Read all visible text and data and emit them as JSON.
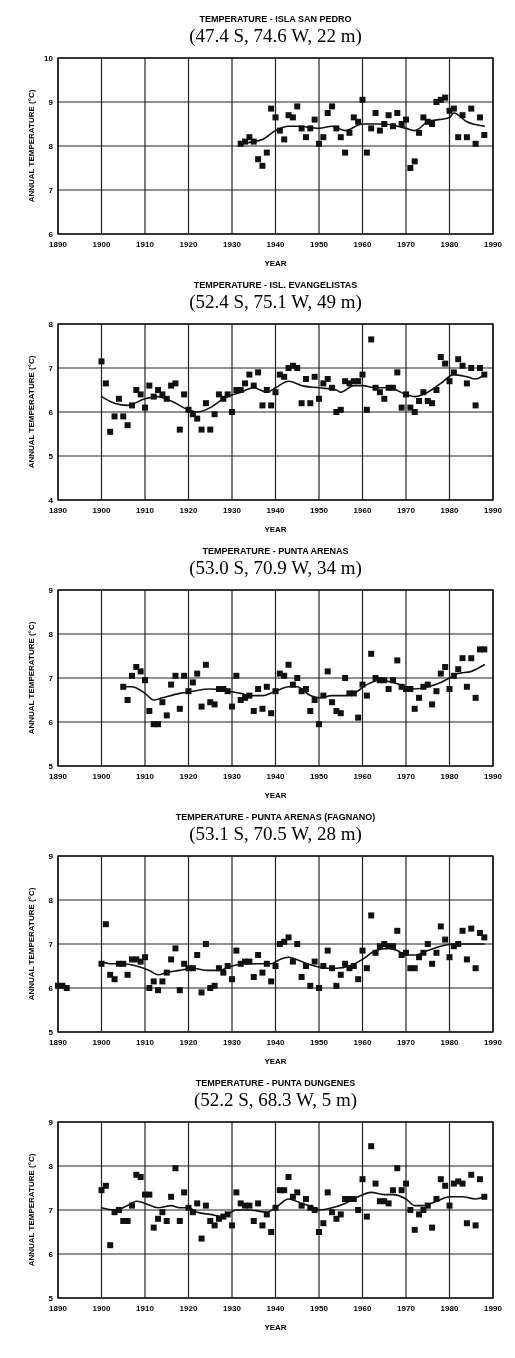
{
  "chart_data": [
    {
      "type": "scatter",
      "title": "TEMPERATURE - ISLA SAN PEDRO",
      "subtitle": "(47.4 S, 74.6 W, 22 m)",
      "xlabel": "YEAR",
      "ylabel": "ANNUAL TEMPERATURE (°C)",
      "xlim": [
        1890,
        1990
      ],
      "xticks": [
        1890,
        1900,
        1910,
        1920,
        1930,
        1940,
        1950,
        1960,
        1970,
        1980,
        1990
      ],
      "ylim": [
        6,
        10
      ],
      "yticks": [
        6,
        7,
        8,
        9,
        10
      ],
      "grid": true,
      "series": [
        {
          "marker": "square",
          "color": "#111111",
          "x": [
            1932,
            1933,
            1934,
            1935,
            1936,
            1937,
            1938,
            1939,
            1940,
            1941,
            1942,
            1943,
            1944,
            1945,
            1946,
            1947,
            1948,
            1949,
            1950,
            1951,
            1952,
            1953,
            1954,
            1955,
            1956,
            1957,
            1958,
            1959,
            1960,
            1961,
            1962,
            1963,
            1964,
            1965,
            1966,
            1967,
            1968,
            1969,
            1970,
            1971,
            1972,
            1973,
            1974,
            1975,
            1976,
            1977,
            1978,
            1979,
            1980,
            1981,
            1982,
            1983,
            1984,
            1985,
            1986,
            1987,
            1988
          ],
          "values": [
            8.05,
            8.1,
            8.2,
            8.1,
            7.7,
            7.55,
            7.85,
            8.85,
            8.65,
            8.35,
            8.15,
            8.7,
            8.65,
            8.9,
            8.4,
            8.2,
            8.4,
            8.6,
            8.05,
            8.2,
            8.75,
            8.9,
            8.4,
            8.2,
            7.85,
            8.3,
            8.65,
            8.55,
            9.05,
            7.85,
            8.4,
            8.75,
            8.35,
            8.5,
            8.7,
            8.45,
            8.75,
            8.5,
            8.6,
            7.5,
            7.65,
            8.3,
            8.65,
            8.55,
            8.5,
            9.0,
            9.05,
            9.1,
            8.8,
            8.85,
            8.2,
            8.7,
            8.2,
            8.85,
            8.05,
            8.65,
            8.25
          ]
        },
        {
          "type": "line",
          "color": "#111111",
          "x": [
            1932,
            1935,
            1937,
            1940,
            1943,
            1945,
            1950,
            1953,
            1956,
            1960,
            1965,
            1968,
            1970,
            1972,
            1975,
            1980,
            1981,
            1984,
            1988
          ],
          "values": [
            8.05,
            8.1,
            8.15,
            8.35,
            8.45,
            8.45,
            8.4,
            8.45,
            8.35,
            8.5,
            8.5,
            8.45,
            8.4,
            8.35,
            8.55,
            8.65,
            8.75,
            8.55,
            8.45
          ]
        }
      ]
    },
    {
      "type": "scatter",
      "title": "TEMPERATURE - ISL. EVANGELISTAS",
      "subtitle": "(52.4 S, 75.1 W, 49 m)",
      "xlabel": "YEAR",
      "ylabel": "ANNUAL TEMPERATURE (°C)",
      "xlim": [
        1890,
        1990
      ],
      "xticks": [
        1890,
        1900,
        1910,
        1920,
        1930,
        1940,
        1950,
        1960,
        1970,
        1980,
        1990
      ],
      "ylim": [
        4,
        8
      ],
      "yticks": [
        4,
        5,
        6,
        7,
        8
      ],
      "grid": true,
      "series": [
        {
          "marker": "square",
          "color": "#111111",
          "x": [
            1900,
            1901,
            1902,
            1903,
            1904,
            1905,
            1906,
            1907,
            1908,
            1909,
            1910,
            1911,
            1912,
            1913,
            1914,
            1915,
            1916,
            1917,
            1918,
            1919,
            1920,
            1921,
            1922,
            1923,
            1924,
            1925,
            1926,
            1927,
            1928,
            1929,
            1930,
            1931,
            1932,
            1933,
            1934,
            1935,
            1936,
            1937,
            1938,
            1939,
            1940,
            1941,
            1942,
            1943,
            1944,
            1945,
            1946,
            1947,
            1948,
            1949,
            1950,
            1951,
            1952,
            1953,
            1954,
            1955,
            1956,
            1957,
            1958,
            1959,
            1960,
            1961,
            1962,
            1963,
            1964,
            1965,
            1966,
            1967,
            1968,
            1969,
            1970,
            1971,
            1972,
            1973,
            1974,
            1975,
            1976,
            1977,
            1978,
            1979,
            1980,
            1981,
            1982,
            1983,
            1984,
            1985,
            1986,
            1987,
            1988
          ],
          "values": [
            7.15,
            6.65,
            5.55,
            5.9,
            6.3,
            5.9,
            5.7,
            6.15,
            6.5,
            6.4,
            6.1,
            6.6,
            6.35,
            6.5,
            6.4,
            6.3,
            6.6,
            6.65,
            5.6,
            6.4,
            6.05,
            5.95,
            5.85,
            5.6,
            6.2,
            5.6,
            5.95,
            6.4,
            6.3,
            6.4,
            6.0,
            6.5,
            6.5,
            6.65,
            6.85,
            6.6,
            6.9,
            6.15,
            6.5,
            6.15,
            6.45,
            6.85,
            6.8,
            7.0,
            7.05,
            7.0,
            6.2,
            6.75,
            6.2,
            6.8,
            6.3,
            6.65,
            6.75,
            6.55,
            6.0,
            6.05,
            6.7,
            6.65,
            6.7,
            6.7,
            6.85,
            6.05,
            7.65,
            6.55,
            6.45,
            6.3,
            6.55,
            6.55,
            6.9,
            6.1,
            6.4,
            6.1,
            6.0,
            6.25,
            6.45,
            6.25,
            6.2,
            6.5,
            7.25,
            7.1,
            6.7,
            6.9,
            7.2,
            7.05,
            6.65,
            7.0,
            6.15,
            7.0,
            6.85
          ]
        },
        {
          "type": "line",
          "color": "#111111",
          "x": [
            1900,
            1903,
            1906,
            1910,
            1913,
            1916,
            1920,
            1922,
            1925,
            1928,
            1932,
            1935,
            1938,
            1940,
            1943,
            1946,
            1950,
            1954,
            1955,
            1958,
            1960,
            1963,
            1966,
            1970,
            1972,
            1975,
            1978,
            1981,
            1984,
            1986,
            1988
          ],
          "values": [
            6.35,
            6.2,
            6.15,
            6.3,
            6.35,
            6.25,
            6.05,
            6.0,
            6.1,
            6.3,
            6.45,
            6.55,
            6.45,
            6.55,
            6.7,
            6.6,
            6.55,
            6.5,
            6.45,
            6.6,
            6.6,
            6.55,
            6.55,
            6.4,
            6.35,
            6.45,
            6.65,
            6.85,
            6.8,
            6.75,
            6.85
          ]
        }
      ]
    },
    {
      "type": "scatter",
      "title": "TEMPERATURE - PUNTA ARENAS",
      "subtitle": "(53.0 S, 70.9 W, 34 m)",
      "xlabel": "YEAR",
      "ylabel": "ANNUAL TEMPERATURE (°C)",
      "xlim": [
        1890,
        1990
      ],
      "xticks": [
        1890,
        1900,
        1910,
        1920,
        1930,
        1940,
        1950,
        1960,
        1970,
        1980,
        1990
      ],
      "ylim": [
        5,
        9
      ],
      "yticks": [
        5,
        6,
        7,
        8,
        9
      ],
      "grid": true,
      "series": [
        {
          "marker": "square",
          "color": "#111111",
          "x": [
            1905,
            1906,
            1907,
            1908,
            1909,
            1910,
            1911,
            1912,
            1913,
            1914,
            1915,
            1916,
            1917,
            1918,
            1919,
            1920,
            1921,
            1922,
            1923,
            1924,
            1925,
            1926,
            1927,
            1928,
            1929,
            1930,
            1931,
            1932,
            1933,
            1934,
            1935,
            1936,
            1937,
            1938,
            1939,
            1940,
            1941,
            1942,
            1943,
            1944,
            1945,
            1946,
            1947,
            1948,
            1949,
            1950,
            1951,
            1952,
            1953,
            1954,
            1955,
            1956,
            1957,
            1958,
            1959,
            1960,
            1961,
            1962,
            1963,
            1964,
            1965,
            1966,
            1967,
            1968,
            1969,
            1970,
            1971,
            1972,
            1973,
            1974,
            1975,
            1976,
            1977,
            1978,
            1979,
            1980,
            1981,
            1982,
            1983,
            1984,
            1985,
            1986,
            1987,
            1988
          ],
          "values": [
            6.8,
            6.5,
            7.05,
            7.25,
            7.15,
            6.95,
            6.25,
            5.95,
            5.95,
            6.45,
            6.15,
            6.85,
            7.05,
            6.3,
            7.05,
            6.7,
            6.9,
            7.1,
            6.35,
            7.3,
            6.45,
            6.4,
            6.75,
            6.75,
            6.7,
            6.35,
            7.05,
            6.5,
            6.55,
            6.6,
            6.25,
            6.75,
            6.3,
            6.8,
            6.2,
            6.7,
            7.1,
            7.05,
            7.3,
            6.85,
            7.0,
            6.7,
            6.75,
            6.25,
            6.5,
            5.95,
            6.6,
            7.15,
            6.45,
            6.25,
            6.2,
            7.0,
            6.65,
            6.65,
            6.1,
            6.85,
            6.6,
            7.55,
            7.0,
            6.95,
            6.95,
            6.75,
            6.95,
            7.4,
            6.8,
            6.75,
            6.75,
            6.3,
            6.55,
            6.8,
            6.85,
            6.4,
            6.7,
            7.1,
            7.25,
            6.75,
            7.05,
            7.2,
            7.45,
            6.8,
            7.45,
            6.55,
            7.65,
            7.65
          ]
        },
        {
          "type": "line",
          "color": "#111111",
          "x": [
            1905,
            1907,
            1910,
            1912,
            1914,
            1918,
            1921,
            1925,
            1929,
            1932,
            1934,
            1937,
            1940,
            1943,
            1945,
            1948,
            1950,
            1953,
            1956,
            1958,
            1961,
            1964,
            1967,
            1970,
            1972,
            1975,
            1978,
            1980,
            1982,
            1985,
            1988
          ],
          "values": [
            6.8,
            6.8,
            6.65,
            6.5,
            6.55,
            6.65,
            6.7,
            6.75,
            6.7,
            6.65,
            6.6,
            6.6,
            6.7,
            6.8,
            6.8,
            6.6,
            6.55,
            6.6,
            6.6,
            6.65,
            6.85,
            6.95,
            6.9,
            6.8,
            6.75,
            6.8,
            6.9,
            7.0,
            7.1,
            7.15,
            7.3
          ]
        }
      ]
    },
    {
      "type": "scatter",
      "title": "TEMPERATURE - PUNTA ARENAS (FAGNANO)",
      "subtitle": "(53.1 S, 70.5 W, 28 m)",
      "xlabel": "YEAR",
      "ylabel": "ANNUAL TEMPERATURE (°C)",
      "xlim": [
        1890,
        1990
      ],
      "xticks": [
        1890,
        1900,
        1910,
        1920,
        1930,
        1940,
        1950,
        1960,
        1970,
        1980,
        1990
      ],
      "ylim": [
        5,
        9
      ],
      "yticks": [
        5,
        6,
        7,
        8,
        9
      ],
      "grid": true,
      "series": [
        {
          "marker": "square",
          "color": "#111111",
          "x": [
            1890,
            1891,
            1892,
            1900,
            1901,
            1902,
            1903,
            1904,
            1905,
            1906,
            1907,
            1908,
            1909,
            1910,
            1911,
            1912,
            1913,
            1914,
            1915,
            1916,
            1917,
            1918,
            1919,
            1920,
            1921,
            1922,
            1923,
            1924,
            1925,
            1926,
            1927,
            1928,
            1929,
            1930,
            1931,
            1932,
            1933,
            1934,
            1935,
            1936,
            1937,
            1938,
            1939,
            1940,
            1941,
            1942,
            1943,
            1944,
            1945,
            1946,
            1947,
            1948,
            1949,
            1950,
            1951,
            1952,
            1953,
            1954,
            1955,
            1956,
            1957,
            1958,
            1959,
            1960,
            1961,
            1962,
            1963,
            1964,
            1965,
            1966,
            1967,
            1968,
            1969,
            1970,
            1971,
            1972,
            1973,
            1974,
            1975,
            1976,
            1977,
            1978,
            1979,
            1980,
            1981,
            1982,
            1983,
            1984,
            1985,
            1986,
            1987,
            1988
          ],
          "values": [
            6.05,
            6.05,
            6.0,
            6.55,
            7.45,
            6.3,
            6.2,
            6.55,
            6.55,
            6.3,
            6.65,
            6.65,
            6.6,
            6.7,
            6.0,
            6.15,
            5.95,
            6.15,
            6.35,
            6.65,
            6.9,
            5.95,
            6.55,
            6.45,
            6.45,
            6.75,
            5.9,
            7.0,
            6.0,
            6.05,
            6.45,
            6.35,
            6.5,
            6.2,
            6.85,
            6.55,
            6.6,
            6.6,
            6.25,
            6.75,
            6.35,
            6.55,
            6.15,
            6.5,
            7.0,
            7.05,
            7.15,
            6.6,
            7.0,
            6.25,
            6.5,
            6.05,
            6.6,
            6.0,
            6.5,
            6.85,
            6.45,
            6.05,
            6.3,
            6.55,
            6.45,
            6.5,
            6.2,
            6.85,
            6.45,
            7.65,
            6.8,
            6.95,
            7.0,
            6.95,
            6.95,
            7.3,
            6.75,
            6.8,
            6.45,
            6.45,
            6.7,
            6.8,
            7.0,
            6.55,
            6.8,
            7.4,
            7.1,
            6.7,
            6.95,
            7.0,
            7.3,
            6.65,
            7.35,
            6.45,
            7.25,
            7.15
          ]
        },
        {
          "type": "line",
          "color": "#111111",
          "x": [
            1900,
            1902,
            1905,
            1908,
            1911,
            1913,
            1915,
            1918,
            1921,
            1924,
            1927,
            1930,
            1933,
            1936,
            1939,
            1941,
            1943,
            1946,
            1949,
            1952,
            1954,
            1957,
            1960,
            1963,
            1966,
            1968,
            1970,
            1972,
            1975,
            1978,
            1981,
            1984,
            1988
          ],
          "values": [
            6.6,
            6.55,
            6.55,
            6.5,
            6.4,
            6.3,
            6.35,
            6.4,
            6.45,
            6.4,
            6.4,
            6.5,
            6.55,
            6.55,
            6.55,
            6.65,
            6.7,
            6.6,
            6.5,
            6.45,
            6.45,
            6.5,
            6.65,
            6.85,
            6.9,
            6.85,
            6.75,
            6.75,
            6.85,
            6.95,
            7.0,
            7.0,
            7.0
          ]
        }
      ]
    },
    {
      "type": "scatter",
      "title": "TEMPERATURE - PUNTA DUNGENES",
      "subtitle": "(52.2 S, 68.3 W, 5 m)",
      "xlabel": "YEAR",
      "ylabel": "ANNUAL TEMPERATURE (°C)",
      "xlim": [
        1890,
        1990
      ],
      "xticks": [
        1890,
        1900,
        1910,
        1920,
        1930,
        1940,
        1950,
        1960,
        1970,
        1980,
        1990
      ],
      "ylim": [
        5,
        9
      ],
      "yticks": [
        5,
        6,
        7,
        8,
        9
      ],
      "grid": true,
      "series": [
        {
          "marker": "square",
          "color": "#111111",
          "x": [
            1900,
            1901,
            1902,
            1903,
            1904,
            1905,
            1906,
            1907,
            1908,
            1909,
            1910,
            1911,
            1912,
            1913,
            1914,
            1915,
            1916,
            1917,
            1918,
            1919,
            1920,
            1921,
            1922,
            1923,
            1924,
            1925,
            1926,
            1927,
            1928,
            1929,
            1930,
            1931,
            1932,
            1933,
            1934,
            1935,
            1936,
            1937,
            1938,
            1939,
            1940,
            1941,
            1942,
            1943,
            1944,
            1945,
            1946,
            1947,
            1948,
            1949,
            1950,
            1951,
            1952,
            1953,
            1954,
            1955,
            1956,
            1957,
            1958,
            1959,
            1960,
            1961,
            1962,
            1963,
            1964,
            1965,
            1966,
            1967,
            1968,
            1969,
            1970,
            1971,
            1972,
            1973,
            1974,
            1975,
            1976,
            1977,
            1978,
            1979,
            1980,
            1981,
            1982,
            1983,
            1984,
            1985,
            1986,
            1987,
            1988
          ],
          "values": [
            7.45,
            7.55,
            6.2,
            6.95,
            7.0,
            6.75,
            6.75,
            7.1,
            7.8,
            7.75,
            7.35,
            7.35,
            6.6,
            6.8,
            6.95,
            6.75,
            7.3,
            7.95,
            6.75,
            7.4,
            7.05,
            6.95,
            7.15,
            6.35,
            7.1,
            6.75,
            6.65,
            6.8,
            6.85,
            6.9,
            6.65,
            7.4,
            7.15,
            7.1,
            7.1,
            6.75,
            7.15,
            6.65,
            6.9,
            6.5,
            7.05,
            7.45,
            7.45,
            7.75,
            7.3,
            7.4,
            7.1,
            7.25,
            7.05,
            7.0,
            6.5,
            6.7,
            7.4,
            6.95,
            6.8,
            6.9,
            7.25,
            7.25,
            7.25,
            7.0,
            7.7,
            6.85,
            8.45,
            7.6,
            7.2,
            7.2,
            7.15,
            7.45,
            7.95,
            7.45,
            7.6,
            7.0,
            6.55,
            6.9,
            7.0,
            7.1,
            6.6,
            7.25,
            7.7,
            7.55,
            7.1,
            7.6,
            7.65,
            7.6,
            6.7,
            7.8,
            6.65,
            7.7,
            7.3
          ]
        },
        {
          "type": "line",
          "color": "#111111",
          "x": [
            1900,
            1903,
            1906,
            1908,
            1910,
            1913,
            1916,
            1918,
            1920,
            1922,
            1925,
            1928,
            1931,
            1934,
            1938,
            1940,
            1943,
            1946,
            1949,
            1950,
            1953,
            1956,
            1959,
            1962,
            1965,
            1967,
            1970,
            1972,
            1974,
            1977,
            1980,
            1983,
            1986,
            1988
          ],
          "values": [
            7.05,
            7.0,
            7.1,
            7.2,
            7.15,
            7.05,
            7.1,
            7.05,
            7.05,
            6.95,
            6.9,
            6.85,
            7.0,
            7.0,
            6.95,
            7.05,
            7.25,
            7.15,
            7.05,
            7.0,
            7.05,
            7.15,
            7.3,
            7.4,
            7.35,
            7.35,
            7.25,
            7.1,
            7.1,
            7.2,
            7.3,
            7.3,
            7.25,
            7.3
          ]
        }
      ]
    }
  ]
}
